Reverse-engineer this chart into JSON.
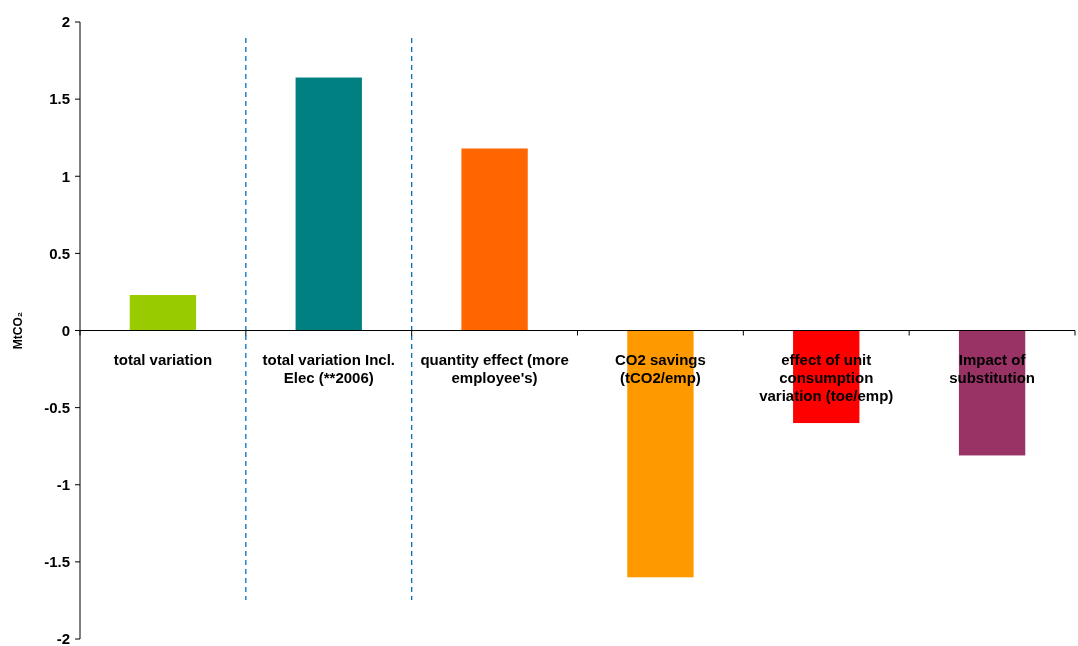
{
  "chart_data": {
    "type": "bar",
    "ylabel": "MtCO₂",
    "categories": [
      "total variation",
      "total variation Incl. Elec (**2006)",
      "quantity effect (more employee's)",
      "CO2 savings (tCO2/emp)",
      "effect of unit consumption variation (toe/emp)",
      "Impact of substitution"
    ],
    "values": [
      0.23,
      1.64,
      1.18,
      -1.6,
      -0.6,
      -0.81
    ],
    "colors": [
      "#99cc00",
      "#008080",
      "#ff6600",
      "#ff9900",
      "#ff0000",
      "#993366"
    ],
    "ylim": [
      -2,
      2
    ],
    "yticks": [
      -2,
      -1.5,
      -1,
      -0.5,
      0,
      0.5,
      1,
      1.5,
      2
    ],
    "grid": false
  }
}
